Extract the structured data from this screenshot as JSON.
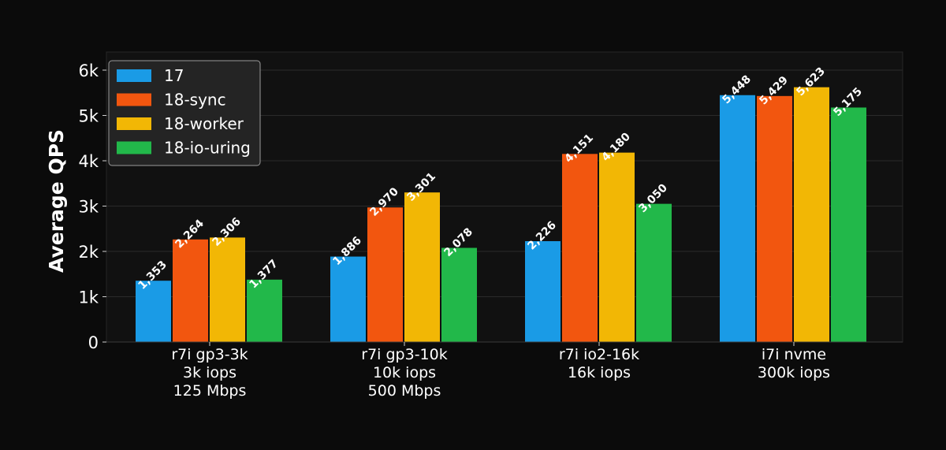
{
  "chart_data": {
    "type": "bar",
    "title": "",
    "xlabel": "",
    "ylabel": "Average QPS",
    "ylim": [
      0,
      6400
    ],
    "yticks": [
      0,
      1000,
      2000,
      3000,
      4000,
      5000,
      6000
    ],
    "ytick_labels": [
      "0",
      "1k",
      "2k",
      "3k",
      "4k",
      "5k",
      "6k"
    ],
    "grid": true,
    "legend_position": "top-left",
    "categories": [
      [
        "r7i gp3-3k",
        "3k iops",
        "125 Mbps"
      ],
      [
        "r7i gp3-10k",
        "10k iops",
        "500 Mbps"
      ],
      [
        "r7i io2-16k",
        "16k iops"
      ],
      [
        "i7i nvme",
        "300k iops"
      ]
    ],
    "series": [
      {
        "name": "17",
        "color": "#1a9be6",
        "values": [
          1353,
          1886,
          2226,
          5448
        ],
        "labels": [
          "1,353",
          "1,886",
          "2,226",
          "5,448"
        ]
      },
      {
        "name": "18-sync",
        "color": "#f2560f",
        "values": [
          2264,
          2970,
          4151,
          5429
        ],
        "labels": [
          "2,264",
          "2,970",
          "4,151",
          "5,429"
        ]
      },
      {
        "name": "18-worker",
        "color": "#f2b705",
        "values": [
          2306,
          3301,
          4180,
          5623
        ],
        "labels": [
          "2,306",
          "3,301",
          "4,180",
          "5,623"
        ]
      },
      {
        "name": "18-io-uring",
        "color": "#22b84a",
        "values": [
          1377,
          2078,
          3050,
          5175
        ],
        "labels": [
          "1,377",
          "2,078",
          "3,050",
          "5,175"
        ]
      }
    ]
  }
}
